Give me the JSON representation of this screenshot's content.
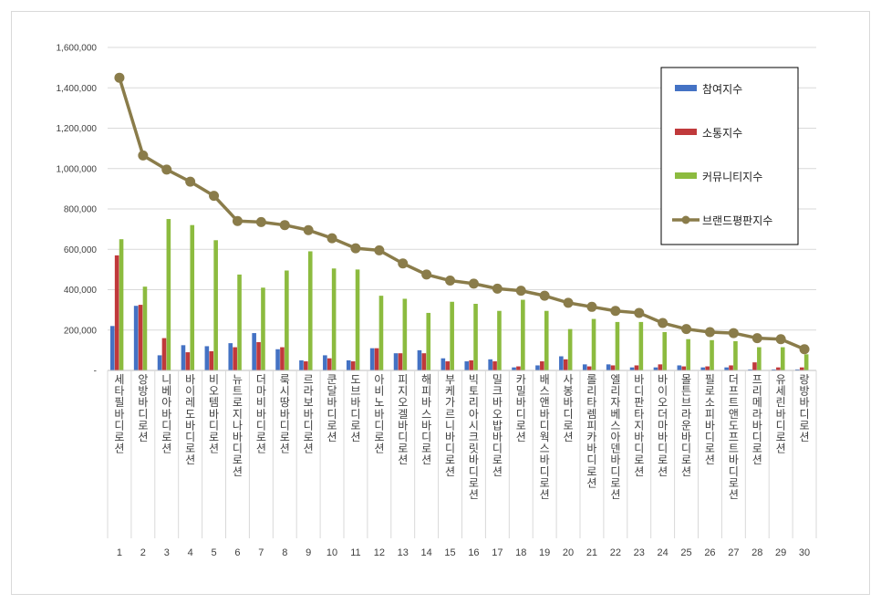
{
  "chart_data": {
    "type": "bar",
    "title": "",
    "xlabel": "",
    "ylabel": "",
    "ylim": [
      0,
      1600000
    ],
    "yticks": [
      "-",
      "200,000",
      "400,000",
      "600,000",
      "800,000",
      "1,000,000",
      "1,200,000",
      "1,400,000",
      "1,600,000"
    ],
    "grid": true,
    "legend_position": "top-right",
    "ranks": [
      "1",
      "2",
      "3",
      "4",
      "5",
      "6",
      "7",
      "8",
      "9",
      "10",
      "11",
      "12",
      "13",
      "14",
      "15",
      "16",
      "17",
      "18",
      "19",
      "20",
      "21",
      "22",
      "23",
      "24",
      "25",
      "26",
      "27",
      "28",
      "29",
      "30"
    ],
    "categories": [
      "세타필바디로션",
      "앙방바디로션",
      "니베아바디로션",
      "바이레도바디로션",
      "비오템바디로션",
      "뉴트로지나바디로션",
      "더마비바디로션",
      "룩시땅바디로션",
      "르라보바디로션",
      "쿤달바디로션",
      "도브바디로션",
      "아비노바디로션",
      "피지오겔바디로션",
      "해피바스바디로션",
      "부케가르니바디로션",
      "빅토리아시크릿바디로션",
      "밀크바오밥바디로션",
      "카밀바디로션",
      "배스앤바디웍스바디로션",
      "사봉바디로션",
      "롤리타렘피카바디로션",
      "엘리자베스아덴바디로션",
      "바디판타지바디로션",
      "바이오더마바디로션",
      "몰튼브라운바디로션",
      "필로소피바디로션",
      "더프트앤도프트바디로션",
      "프리메라바디로션",
      "유세린바디로션",
      "랑방바디로션"
    ],
    "series": [
      {
        "name": "참여지수",
        "kind": "bar",
        "color": "#4472c4",
        "values": [
          220000,
          320000,
          75000,
          125000,
          120000,
          135000,
          185000,
          105000,
          50000,
          75000,
          50000,
          110000,
          85000,
          100000,
          60000,
          45000,
          55000,
          15000,
          25000,
          70000,
          30000,
          30000,
          15000,
          15000,
          25000,
          15000,
          15000,
          5000,
          5000,
          5000
        ]
      },
      {
        "name": "소통지수",
        "kind": "bar",
        "color": "#c0393b",
        "values": [
          570000,
          325000,
          160000,
          90000,
          95000,
          115000,
          140000,
          115000,
          45000,
          60000,
          45000,
          110000,
          85000,
          85000,
          45000,
          50000,
          45000,
          20000,
          45000,
          55000,
          20000,
          25000,
          25000,
          30000,
          20000,
          20000,
          25000,
          40000,
          15000,
          15000
        ]
      },
      {
        "name": "커뮤니티지수",
        "kind": "bar",
        "color": "#8cbb3f",
        "values": [
          650000,
          415000,
          750000,
          720000,
          645000,
          475000,
          410000,
          495000,
          590000,
          505000,
          500000,
          370000,
          355000,
          285000,
          340000,
          330000,
          295000,
          350000,
          295000,
          205000,
          255000,
          240000,
          240000,
          190000,
          155000,
          150000,
          145000,
          115000,
          115000,
          80000
        ]
      },
      {
        "name": "브랜드평판지수",
        "kind": "line",
        "color": "#8a7c4a",
        "values": [
          1450000,
          1065000,
          995000,
          935000,
          865000,
          740000,
          735000,
          720000,
          695000,
          655000,
          605000,
          595000,
          530000,
          475000,
          445000,
          430000,
          405000,
          395000,
          370000,
          335000,
          315000,
          295000,
          285000,
          235000,
          205000,
          190000,
          185000,
          160000,
          155000,
          105000
        ]
      }
    ]
  }
}
